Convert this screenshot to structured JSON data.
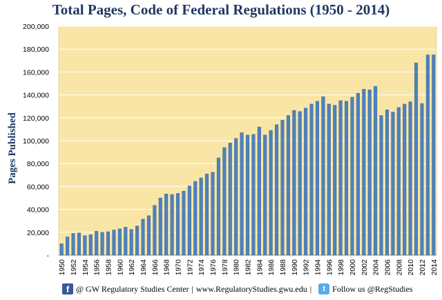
{
  "colors": {
    "plot_bg": "#f9e6a7",
    "bar": "#4f81bd",
    "bar_edge": "#2e5c91",
    "grid": "#ffffff",
    "title": "#1f3864"
  },
  "chart_data": {
    "type": "bar",
    "title": "Total Pages, Code of Federal Regulations (1950 - 2014)",
    "xlabel": "",
    "ylabel": "Pages Published",
    "ylim": [
      0,
      200000
    ],
    "y_ticks": [
      "-",
      "20,000",
      "40,000",
      "60,000",
      "80,000",
      "100,000",
      "120,000",
      "140,000",
      "160,000",
      "180,000",
      "200,000"
    ],
    "grid": true,
    "categories": [
      1950,
      1951,
      1952,
      1953,
      1954,
      1955,
      1956,
      1957,
      1958,
      1959,
      1960,
      1961,
      1962,
      1963,
      1964,
      1965,
      1966,
      1967,
      1968,
      1969,
      1970,
      1971,
      1972,
      1973,
      1974,
      1975,
      1976,
      1977,
      1978,
      1979,
      1980,
      1981,
      1982,
      1983,
      1984,
      1985,
      1986,
      1987,
      1988,
      1989,
      1990,
      1991,
      1992,
      1993,
      1994,
      1995,
      1996,
      1997,
      1998,
      1999,
      2000,
      2001,
      2002,
      2003,
      2004,
      2005,
      2006,
      2007,
      2008,
      2009,
      2010,
      2011,
      2012,
      2013,
      2014
    ],
    "values": [
      10000,
      16000,
      19000,
      19500,
      17000,
      18000,
      21000,
      20000,
      20500,
      22000,
      23000,
      24500,
      22500,
      25500,
      31500,
      34500,
      43500,
      50000,
      53500,
      53000,
      54000,
      56000,
      60500,
      64500,
      67500,
      71000,
      72500,
      85000,
      94000,
      98000,
      102000,
      107000,
      105000,
      105500,
      112000,
      105000,
      109000,
      114000,
      118000,
      122000,
      126500,
      125500,
      128500,
      132000,
      134500,
      138500,
      132000,
      131000,
      135000,
      134500,
      138000,
      141500,
      145000,
      144500,
      147500,
      122000,
      127000,
      125000,
      129000,
      132000,
      134000,
      168000,
      132500,
      175000,
      175000
    ],
    "x_tick_labels": [
      "1950",
      "1952",
      "1954",
      "1956",
      "1958",
      "1960",
      "1962",
      "1964",
      "1966",
      "1968",
      "1970",
      "1972",
      "1974",
      "1976",
      "1978",
      "1980",
      "1982",
      "1984",
      "1986",
      "1988",
      "1990",
      "1992",
      "1994",
      "1996",
      "1998",
      "2000",
      "2002",
      "2004",
      "2006",
      "2008",
      "2010",
      "2012",
      "2014"
    ]
  },
  "footer": {
    "facebook_icon": "f",
    "org_text": "@ GW Regulatory Studies Center",
    "separator": "|",
    "url": "www.RegulatoryStudies.gwu.edu",
    "twitter_icon": "t",
    "twitter_text": "Follow us @RegStudies"
  }
}
